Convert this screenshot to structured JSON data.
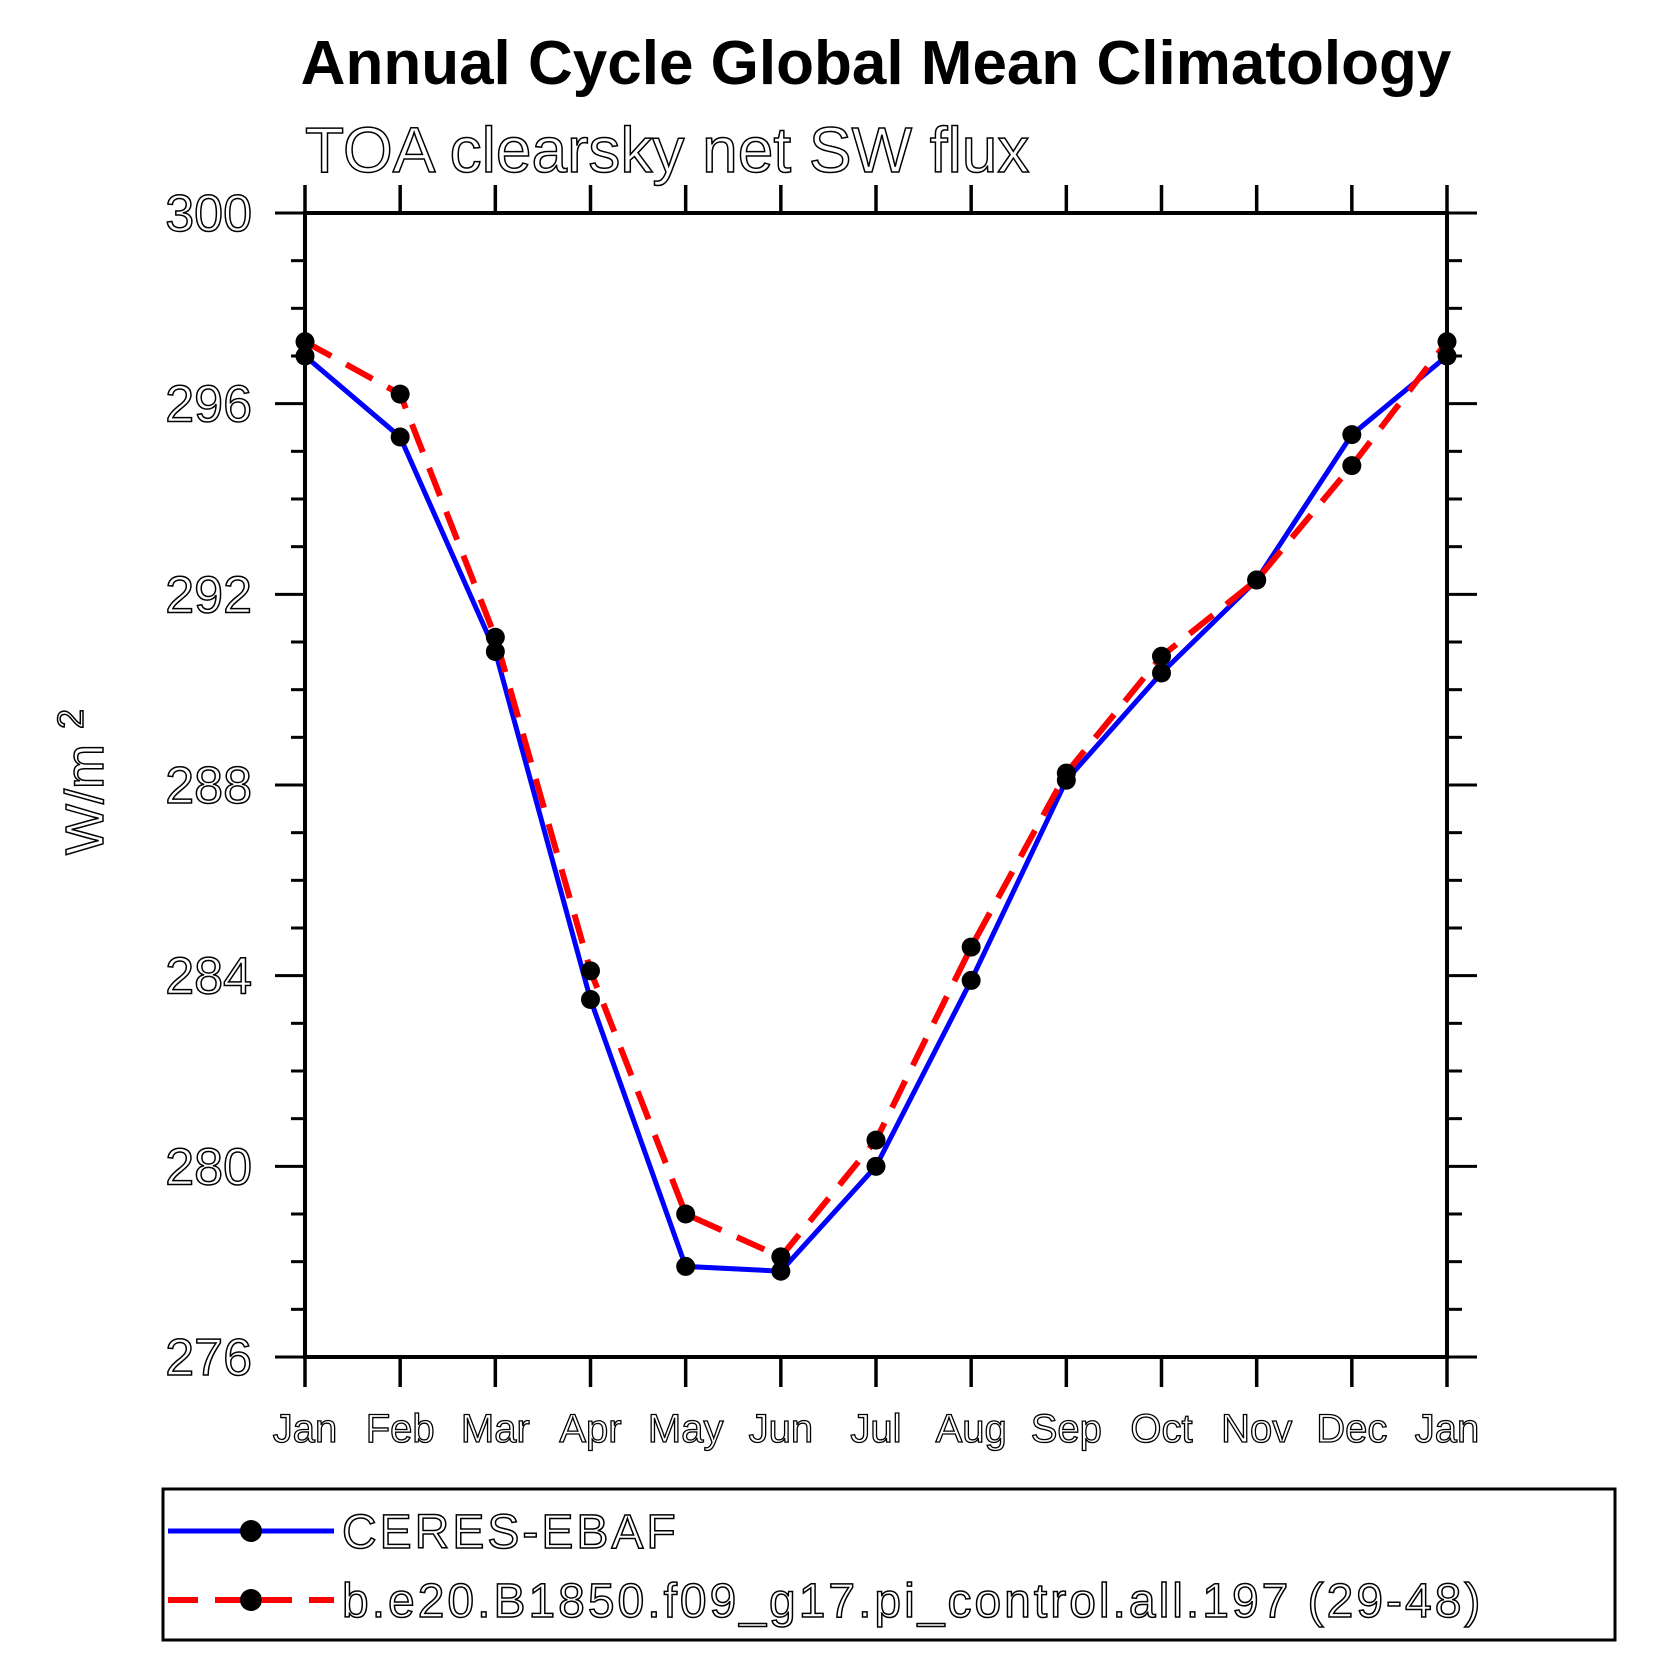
{
  "title": {
    "text": "Annual Cycle Global Mean Climatology"
  },
  "subtitle": {
    "text": "TOA clearsky net SW flux"
  },
  "y_axis": {
    "label": "W/m",
    "label_superscript": "2",
    "tick_labels": [
      "276",
      "280",
      "284",
      "288",
      "292",
      "296",
      "300"
    ]
  },
  "x_axis": {
    "tick_labels": [
      "Jan",
      "Feb",
      "Mar",
      "Apr",
      "May",
      "Jun",
      "Jul",
      "Aug",
      "Sep",
      "Oct",
      "Nov",
      "Dec",
      "Jan"
    ]
  },
  "legend": {
    "entries": [
      {
        "label": "CERES-EBAF"
      },
      {
        "label": "b.e20.B1850.f09_g17.pi_control.all.197 (29-48)"
      }
    ]
  },
  "chart_data": {
    "type": "line",
    "title": "Annual Cycle Global Mean Climatology",
    "subtitle": "TOA clearsky net SW flux",
    "ylabel": "W/m^2",
    "xlabel": "",
    "categories": [
      "Jan",
      "Feb",
      "Mar",
      "Apr",
      "May",
      "Jun",
      "Jul",
      "Aug",
      "Sep",
      "Oct",
      "Nov",
      "Dec",
      "Jan"
    ],
    "ylim": [
      276,
      300
    ],
    "y_major_tick_step": 4,
    "y_minor_tick_step": 1,
    "grid": false,
    "legend_position": "bottom",
    "marker": {
      "shape": "circle",
      "color": "#000000"
    },
    "series": [
      {
        "name": "CERES-EBAF",
        "color": "#0000ff",
        "line_style": "solid",
        "values": [
          297.0,
          295.3,
          290.8,
          283.5,
          277.9,
          277.8,
          280.0,
          283.9,
          288.1,
          290.35,
          292.3,
          295.35,
          297.0
        ]
      },
      {
        "name": "b.e20.B1850.f09_g17.pi_control.all.197 (29-48)",
        "color": "#ff0000",
        "line_style": "dashed",
        "values": [
          297.3,
          296.2,
          291.1,
          284.1,
          279.0,
          278.1,
          280.55,
          284.6,
          288.25,
          290.7,
          292.3,
          294.7,
          297.3
        ]
      }
    ]
  }
}
